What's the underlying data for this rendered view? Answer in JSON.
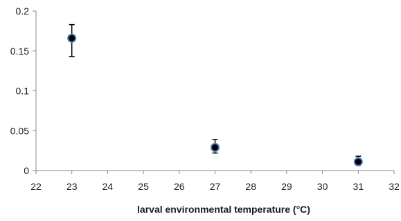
{
  "chart_data": {
    "type": "scatter",
    "title": "",
    "xlabel": "larval environmental temperature (°C)",
    "ylabel": "",
    "xlim": [
      22,
      32
    ],
    "ylim": [
      0,
      0.2
    ],
    "x_ticks": [
      22,
      23,
      24,
      25,
      26,
      27,
      28,
      29,
      30,
      31,
      32
    ],
    "y_ticks": [
      0,
      0.05,
      0.1,
      0.15,
      0.2
    ],
    "y_tick_labels": [
      "0",
      "0.05",
      "0.1",
      "0.15",
      "0.2"
    ],
    "grid": false,
    "legend": "none",
    "marker_color": "#000000",
    "marker_edge_color": "#4a7ab5",
    "series": [
      {
        "x": [
          23,
          27,
          31
        ],
        "y": [
          0.166,
          0.029,
          0.011
        ],
        "error_upper": [
          0.183,
          0.039,
          0.018
        ],
        "error_lower": [
          0.143,
          0.022,
          0.008
        ]
      }
    ]
  }
}
